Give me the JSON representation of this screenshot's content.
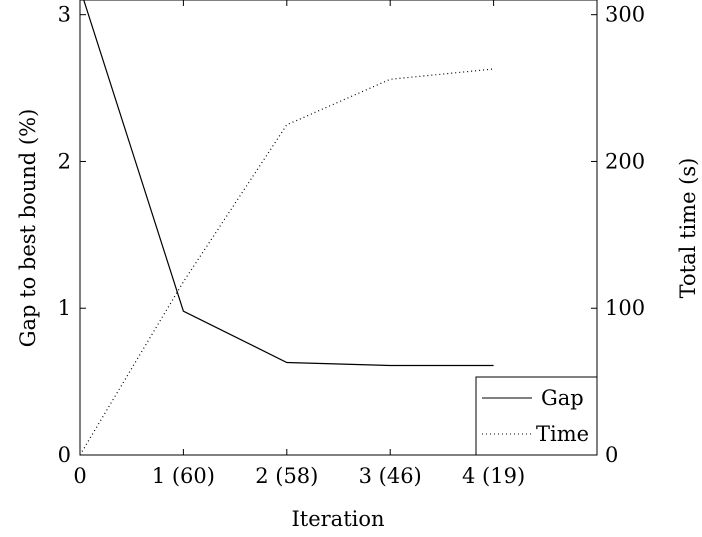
{
  "chart_data": {
    "type": "line",
    "categories": [
      "0",
      "1 (60)",
      "2 (58)",
      "3 (46)",
      "4 (19)"
    ],
    "x": [
      0,
      1,
      2,
      3,
      4
    ],
    "xlabel": "Iteration",
    "xlim": [
      0,
      5
    ],
    "y_left": {
      "label": "Gap to best bound (%)",
      "lim": [
        0,
        3.1
      ],
      "ticks": [
        "0",
        "1",
        "2",
        "3"
      ]
    },
    "y_right": {
      "label": "Total time (s)",
      "lim": [
        0,
        310
      ],
      "ticks": [
        "0",
        "100",
        "200",
        "300"
      ]
    },
    "series": [
      {
        "name": "Gap",
        "axis": "left",
        "style": "solid",
        "values": [
          3.18,
          0.98,
          0.63,
          0.61,
          0.61
        ]
      },
      {
        "name": "Time",
        "axis": "right",
        "style": "dotted",
        "values": [
          0,
          118,
          225,
          256,
          263
        ]
      }
    ],
    "legend": {
      "position": "bottom-right"
    },
    "grid": false,
    "colors": {
      "line": "#000000",
      "background": "#ffffff"
    }
  }
}
